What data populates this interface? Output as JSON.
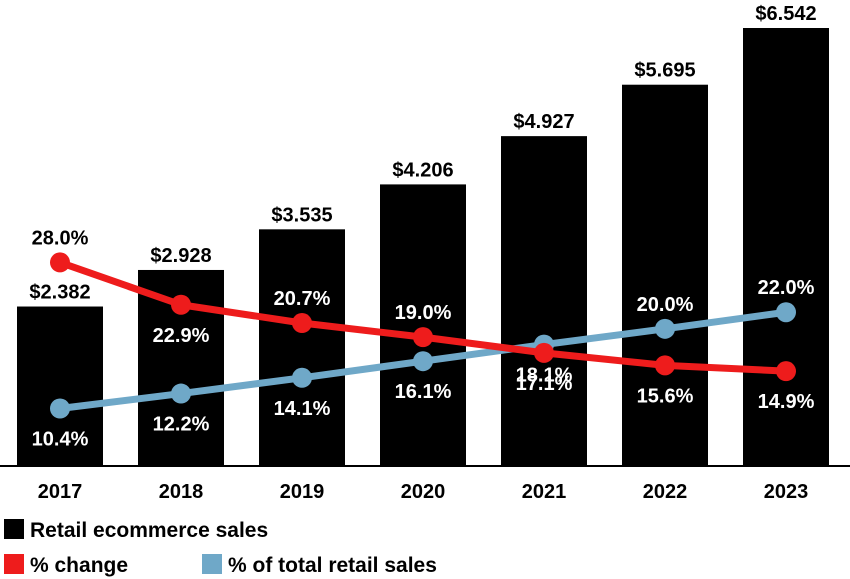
{
  "colors": {
    "bar": "#000000",
    "change": "#ee1c1c",
    "share": "#6fa8c8",
    "axis": "#000000",
    "label_on_dark": "#ffffff",
    "label_on_light": "#000000"
  },
  "chart_data": {
    "type": "bar",
    "categories": [
      "2017",
      "2018",
      "2019",
      "2020",
      "2021",
      "2022",
      "2023"
    ],
    "series": [
      {
        "name": "Retail ecommerce sales",
        "kind": "bar",
        "values": [
          2.382,
          2.928,
          3.535,
          4.206,
          4.927,
          5.695,
          6.542
        ],
        "labels": [
          "$2.382",
          "$2.928",
          "$3.535",
          "$4.206",
          "$4.927",
          "$5.695",
          "$6.542"
        ]
      },
      {
        "name": "% change",
        "kind": "line",
        "values": [
          28.0,
          22.9,
          20.7,
          19.0,
          17.1,
          15.6,
          14.9
        ],
        "labels": [
          "28.0%",
          "22.9%",
          "20.7%",
          "19.0%",
          "17.1%",
          "15.6%",
          "14.9%"
        ]
      },
      {
        "name": "% of total retail sales",
        "kind": "line",
        "values": [
          10.4,
          12.2,
          14.1,
          16.1,
          18.1,
          20.0,
          22.0
        ],
        "labels": [
          "10.4%",
          "12.2%",
          "14.1%",
          "16.1%",
          "18.1%",
          "20.0%",
          "22.0%"
        ]
      }
    ],
    "title": "",
    "xlabel": "",
    "ylabel": "",
    "ylim": [
      0,
      7
    ],
    "legend": {
      "position": "bottom-left",
      "entries": [
        "Retail ecommerce sales",
        "% change",
        "% of total retail sales"
      ]
    },
    "grid": false
  }
}
